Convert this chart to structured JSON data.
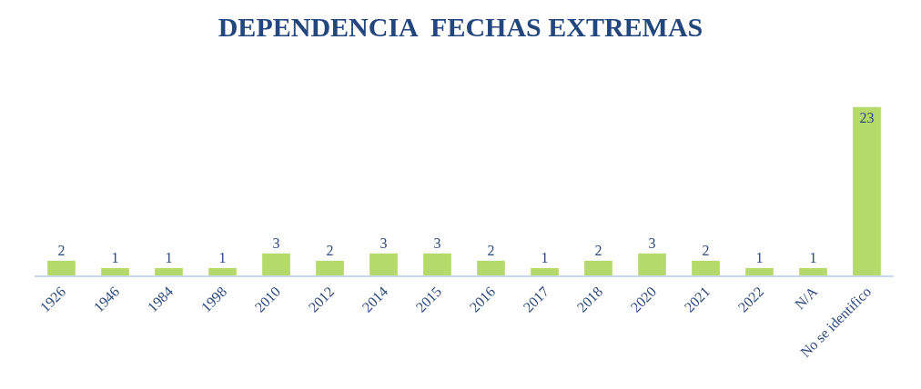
{
  "chart_data": {
    "type": "bar",
    "title": "DEPENDENCIA  FECHAS EXTREMAS",
    "categories": [
      "1926",
      "1946",
      "1984",
      "1998",
      "2010",
      "2012",
      "2014",
      "2015",
      "2016",
      "2017",
      "2018",
      "2020",
      "2021",
      "2022",
      "N/A",
      "No se identifico"
    ],
    "values": [
      2,
      1,
      1,
      1,
      3,
      2,
      3,
      3,
      2,
      1,
      2,
      3,
      2,
      1,
      1,
      23
    ],
    "color": "#b5d96a",
    "data_labels": true
  }
}
